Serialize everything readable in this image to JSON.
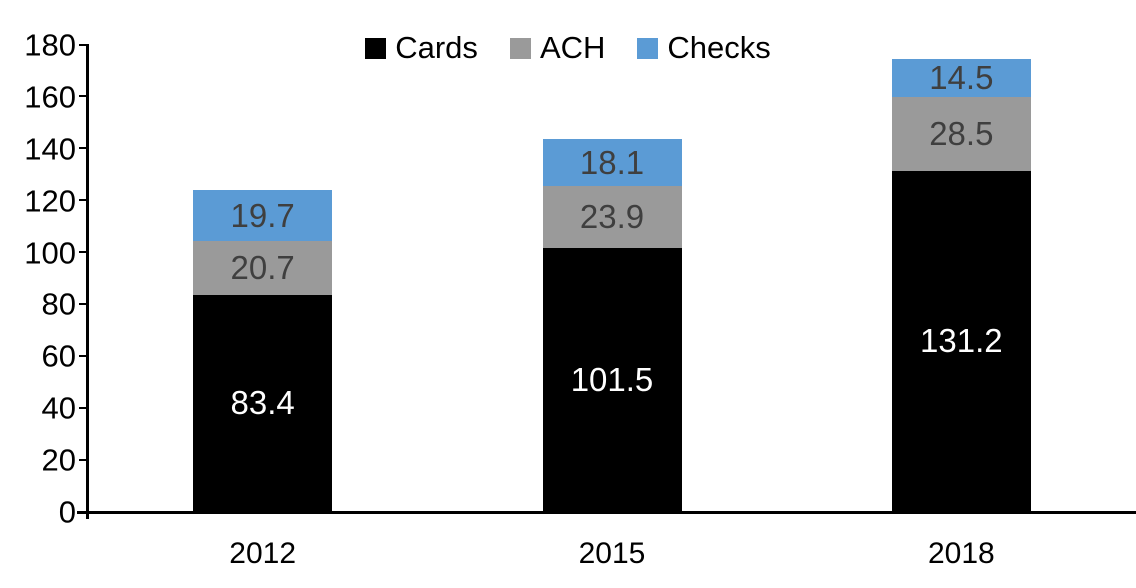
{
  "chart_data": {
    "type": "bar",
    "stacked": true,
    "title": "",
    "categories": [
      "2012",
      "2015",
      "2018"
    ],
    "series": [
      {
        "name": "Cards",
        "color": "#000000",
        "label_color": "#ffffff",
        "values": [
          83.4,
          101.5,
          131.2
        ]
      },
      {
        "name": "ACH",
        "color": "#9a9a9a",
        "label_color": "#3f3f3f",
        "values": [
          20.7,
          23.9,
          28.5
        ]
      },
      {
        "name": "Checks",
        "color": "#5b9bd5",
        "label_color": "#3f3f3f",
        "values": [
          19.7,
          18.1,
          14.5
        ]
      }
    ],
    "totals": [
      123.8,
      143.5,
      174.2
    ],
    "ylim": [
      0,
      180
    ],
    "ytick_step": 20,
    "yticks": [
      0,
      20,
      40,
      60,
      80,
      100,
      120,
      140,
      160,
      180
    ],
    "legend": {
      "position": "top",
      "entries": [
        "Cards",
        "ACH",
        "Checks"
      ]
    },
    "grid": false,
    "axis_color": "#000000",
    "tick_label_color": "#000000",
    "background_color": "#ffffff"
  }
}
